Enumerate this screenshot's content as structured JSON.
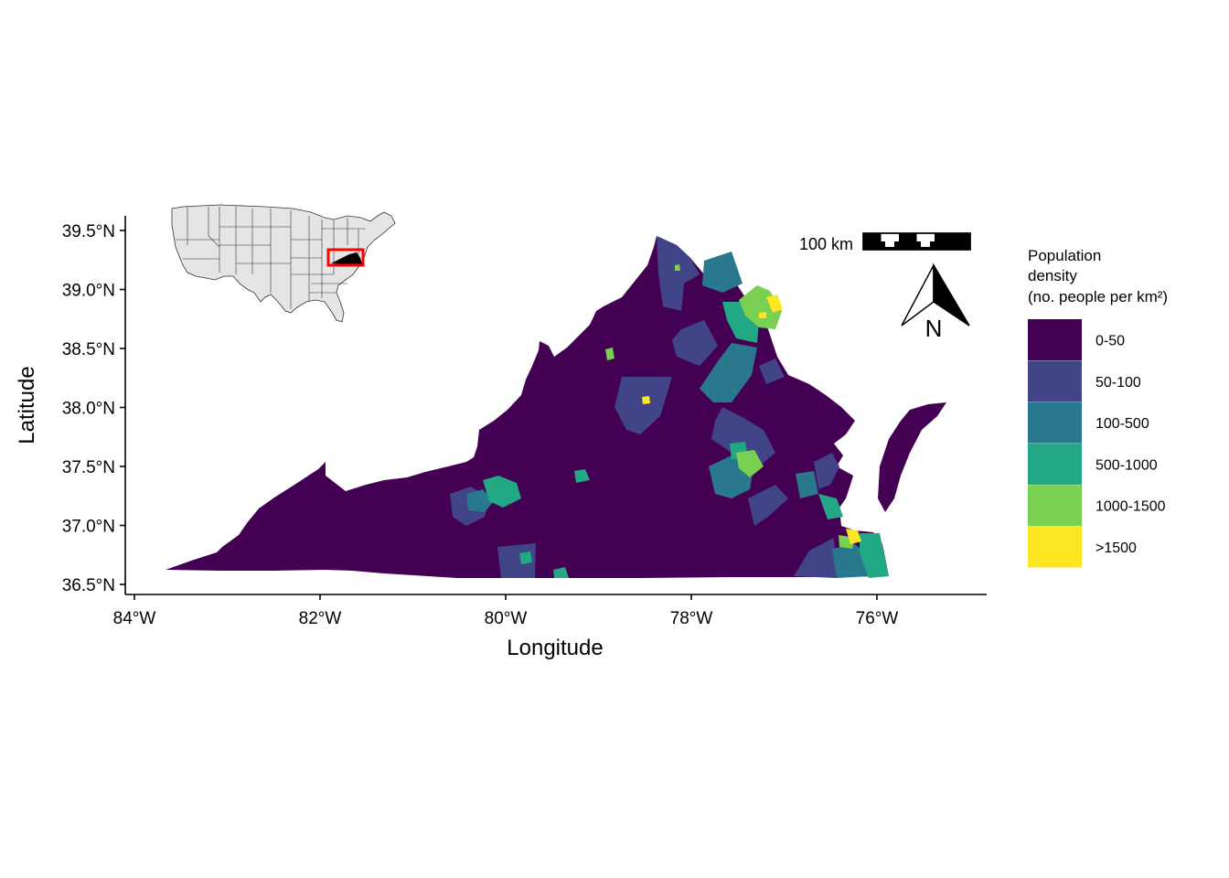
{
  "map": {
    "x_axis": {
      "title": "Longitude",
      "ticks": [
        "84°W",
        "82°W",
        "80°W",
        "78°W",
        "76°W"
      ]
    },
    "y_axis": {
      "title": "Latitude",
      "ticks": [
        "39.5°N",
        "39.0°N",
        "38.5°N",
        "38.0°N",
        "37.5°N",
        "37.0°N",
        "36.5°N"
      ]
    },
    "legend": {
      "title_lines": [
        "Population",
        "density",
        "(no. people per km²)"
      ],
      "items": [
        {
          "label": "0-50",
          "color": "#440154"
        },
        {
          "label": "50-100",
          "color": "#414487"
        },
        {
          "label": "100-500",
          "color": "#2a788e"
        },
        {
          "label": "500-1000",
          "color": "#22a884"
        },
        {
          "label": "1000-1500",
          "color": "#7ad151"
        },
        {
          "label": ">1500",
          "color": "#fde725"
        }
      ]
    },
    "scale_bar": {
      "label": "100 km"
    },
    "north_arrow": {
      "label": "N"
    },
    "inset": {
      "highlight_color": "#ff0000",
      "state_fill": "#e5e5e5"
    }
  }
}
